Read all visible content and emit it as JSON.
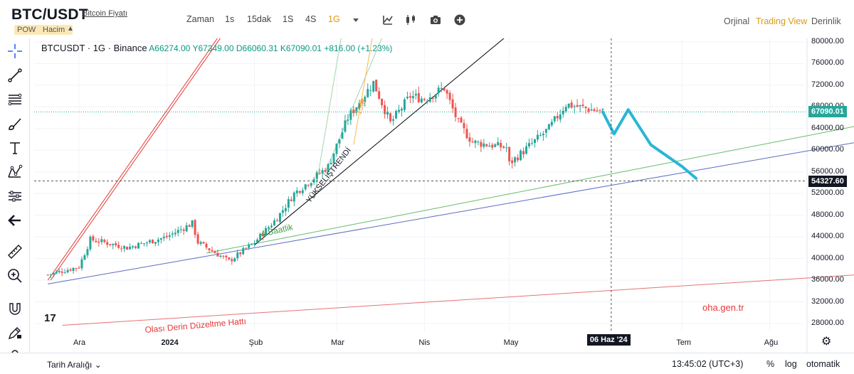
{
  "header": {
    "pair": "BTC/USDT",
    "price_link": "Bitcoin Fiyatı",
    "badge_pow": "POW",
    "badge_volume": "Hacim",
    "collapse_icon": "chevron-up-icon"
  },
  "toolbar": {
    "intervals": [
      {
        "label": "Zaman",
        "active": false
      },
      {
        "label": "1s",
        "active": false
      },
      {
        "label": "15dak",
        "active": false
      },
      {
        "label": "1S",
        "active": false
      },
      {
        "label": "4S",
        "active": false
      },
      {
        "label": "1G",
        "active": true
      }
    ],
    "icons": [
      "dropdown-arrow-icon",
      "indicators-icon",
      "candle-type-icon",
      "camera-icon",
      "add-icon"
    ]
  },
  "views": [
    {
      "label": "Orjinal",
      "active": false
    },
    {
      "label": "Trading View",
      "active": true
    },
    {
      "label": "Derinlik",
      "active": false
    }
  ],
  "left_tools": [
    "crosshair-icon",
    "trendline-icon",
    "fib-icon",
    "brush-icon",
    "text-icon",
    "pattern-icon",
    "forecast-icon",
    "back-arrow-icon",
    "ruler-icon",
    "zoom-icon",
    "magnet-icon",
    "lock-draw-icon",
    "unlock-icon"
  ],
  "legend": {
    "symbol": "BTCUSDT · 1G · Binance",
    "open": "A66274.00",
    "high": "Y67349.00",
    "low": "D66060.31",
    "close": "K67090.01",
    "change": "+816.00 (+1.23%)"
  },
  "annotations": {
    "uptrend": "YÜKSELİŞTRENDİ",
    "h4": "4 Saatlik",
    "m15": "15dk",
    "deep_correction": "Olası Derin Düzeltme Hattı",
    "watermark": "oha.gen.tr"
  },
  "price_tags": {
    "last": "67090.01",
    "cursor": "54327.60",
    "last_color": "#26a69a",
    "cursor_color": "#131722"
  },
  "date_tag": "06 Haz '24",
  "chart_data": {
    "type": "candlestick",
    "y_ticks": [
      "80000.00",
      "76000.00",
      "72000.00",
      "68000.00",
      "64000.00",
      "60000.00",
      "56000.00",
      "52000.00",
      "48000.00",
      "44000.00",
      "40000.00",
      "36000.00",
      "32000.00",
      "28000.00"
    ],
    "x_ticks": [
      "Ara",
      "2024",
      "Şub",
      "Mar",
      "Nis",
      "May",
      "Tem",
      "Ağu"
    ],
    "ylim": [
      26000,
      81500
    ],
    "colors": {
      "up": "#26a69a",
      "down": "#ef5350",
      "forecast": "#29b6d6"
    },
    "close_path": [
      {
        "d": "Nov 20",
        "c": 37000
      },
      {
        "d": "Dec 1",
        "c": 38500
      },
      {
        "d": "Dec 5",
        "c": 43500
      },
      {
        "d": "Dec 10",
        "c": 43000
      },
      {
        "d": "Dec 18",
        "c": 42000
      },
      {
        "d": "Jan 1",
        "c": 44000
      },
      {
        "d": "Jan 10",
        "c": 46500
      },
      {
        "d": "Jan 12",
        "c": 43000
      },
      {
        "d": "Jan 23",
        "c": 39500
      },
      {
        "d": "Feb 1",
        "c": 43000
      },
      {
        "d": "Feb 9",
        "c": 47500
      },
      {
        "d": "Feb 15",
        "c": 52000
      },
      {
        "d": "Feb 27",
        "c": 57000
      },
      {
        "d": "Mar 5",
        "c": 66000
      },
      {
        "d": "Mar 14",
        "c": 72500
      },
      {
        "d": "Mar 20",
        "c": 65000
      },
      {
        "d": "Mar 27",
        "c": 70000
      },
      {
        "d": "Apr 1",
        "c": 69500
      },
      {
        "d": "Apr 8",
        "c": 71500
      },
      {
        "d": "Apr 13",
        "c": 65000
      },
      {
        "d": "Apr 18",
        "c": 61500
      },
      {
        "d": "Apr 30",
        "c": 60500
      },
      {
        "d": "May 1",
        "c": 57500
      },
      {
        "d": "May 15",
        "c": 64000
      },
      {
        "d": "May 21",
        "c": 68500
      },
      {
        "d": "Jun 3",
        "c": 67090
      }
    ],
    "forecast": [
      {
        "d": "Jun 3",
        "c": 67090
      },
      {
        "d": "Jun 7",
        "c": 63000
      },
      {
        "d": "Jun 12",
        "c": 67500
      },
      {
        "d": "Jun 20",
        "c": 61000
      },
      {
        "d": "Jul 1",
        "c": 57000
      },
      {
        "d": "Jul 6",
        "c": 54800
      }
    ],
    "lines": [
      {
        "name": "red-steep",
        "color": "#e53935",
        "from": {
          "d": "Nov 20",
          "c": 36000
        },
        "to": {
          "d": "Jan 20",
          "c": 81500
        }
      },
      {
        "name": "green-4h",
        "color": "#66bb6a",
        "from": {
          "d": "Jan 15",
          "c": 41000
        },
        "to": {
          "d": "Sep 1",
          "c": 64500
        }
      },
      {
        "name": "blue-support",
        "color": "#5c6bc0",
        "from": {
          "d": "Nov 20",
          "c": 35300
        },
        "to": {
          "d": "Sep 1",
          "c": 61500
        }
      },
      {
        "name": "black-uptrend",
        "color": "#000000",
        "from": {
          "d": "Feb 1",
          "c": 42500
        },
        "to": {
          "d": "May 1",
          "c": 81500
        }
      },
      {
        "name": "red-deep-correction",
        "color": "#e57373",
        "from": {
          "d": "Nov 20",
          "c": 27500
        },
        "to": {
          "d": "Sep 1",
          "c": 37000
        }
      }
    ]
  }
}
